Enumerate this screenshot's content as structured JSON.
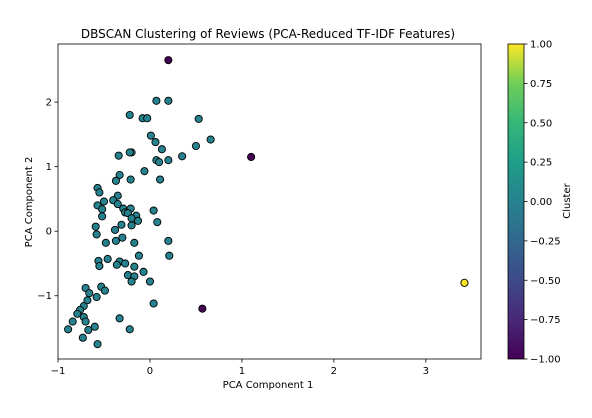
{
  "chart_data": {
    "type": "scatter",
    "title": "DBSCAN Clustering of Reviews (PCA-Reduced TF-IDF Features)",
    "xlabel": "PCA Component 1",
    "ylabel": "PCA Component 2",
    "xlim": [
      -1.0,
      3.6
    ],
    "ylim": [
      -1.98,
      2.9
    ],
    "x_ticks": [
      -1,
      0,
      1,
      2,
      3
    ],
    "x_tick_labels": [
      "−1",
      "0",
      "1",
      "2",
      "3"
    ],
    "y_ticks": [
      -1,
      0,
      1,
      2
    ],
    "y_tick_labels": [
      "−1",
      "0",
      "1",
      "2"
    ],
    "grid": false,
    "colorbar": {
      "label": "Cluster",
      "min": -1.0,
      "max": 1.0,
      "ticks": [
        -1.0,
        -0.75,
        -0.5,
        -0.25,
        0.0,
        0.25,
        0.5,
        0.75,
        1.0
      ],
      "tick_labels": [
        "−1.00",
        "−0.75",
        "−0.50",
        "−0.25",
        "0.00",
        "0.25",
        "0.50",
        "0.75",
        "1.00"
      ],
      "colormap": "viridis"
    },
    "points": [
      {
        "x": 0.2,
        "y": 2.65,
        "cluster": -1
      },
      {
        "x": 1.1,
        "y": 1.15,
        "cluster": -1
      },
      {
        "x": 0.57,
        "y": -1.2,
        "cluster": -1
      },
      {
        "x": 3.42,
        "y": -0.8,
        "cluster": 1
      },
      {
        "x": 0.07,
        "y": 2.02,
        "cluster": 0
      },
      {
        "x": 0.2,
        "y": 2.02,
        "cluster": 0
      },
      {
        "x": -0.22,
        "y": 1.8,
        "cluster": 0
      },
      {
        "x": -0.08,
        "y": 1.75,
        "cluster": 0
      },
      {
        "x": -0.03,
        "y": 1.75,
        "cluster": 0
      },
      {
        "x": 0.53,
        "y": 1.74,
        "cluster": 0
      },
      {
        "x": 0.01,
        "y": 1.48,
        "cluster": 0
      },
      {
        "x": 0.66,
        "y": 1.42,
        "cluster": 0
      },
      {
        "x": 0.06,
        "y": 1.38,
        "cluster": 0
      },
      {
        "x": 0.5,
        "y": 1.32,
        "cluster": 0
      },
      {
        "x": 0.13,
        "y": 1.27,
        "cluster": 0
      },
      {
        "x": -0.2,
        "y": 1.22,
        "cluster": 0
      },
      {
        "x": -0.22,
        "y": 1.22,
        "cluster": 0
      },
      {
        "x": -0.34,
        "y": 1.17,
        "cluster": 0
      },
      {
        "x": 0.35,
        "y": 1.16,
        "cluster": 0
      },
      {
        "x": 0.07,
        "y": 1.1,
        "cluster": 0
      },
      {
        "x": 0.1,
        "y": 1.07,
        "cluster": 0
      },
      {
        "x": 0.2,
        "y": 1.1,
        "cluster": 0
      },
      {
        "x": -0.06,
        "y": 0.93,
        "cluster": 0
      },
      {
        "x": -0.33,
        "y": 0.87,
        "cluster": 0
      },
      {
        "x": -0.21,
        "y": 0.8,
        "cluster": 0
      },
      {
        "x": -0.37,
        "y": 0.78,
        "cluster": 0
      },
      {
        "x": 0.11,
        "y": 0.8,
        "cluster": 0
      },
      {
        "x": -0.57,
        "y": 0.67,
        "cluster": 0
      },
      {
        "x": -0.55,
        "y": 0.6,
        "cluster": 0
      },
      {
        "x": -0.35,
        "y": 0.55,
        "cluster": 0
      },
      {
        "x": -0.4,
        "y": 0.48,
        "cluster": 0
      },
      {
        "x": -0.5,
        "y": 0.46,
        "cluster": 0
      },
      {
        "x": -0.35,
        "y": 0.42,
        "cluster": 0
      },
      {
        "x": -0.57,
        "y": 0.4,
        "cluster": 0
      },
      {
        "x": -0.29,
        "y": 0.35,
        "cluster": 0
      },
      {
        "x": -0.21,
        "y": 0.35,
        "cluster": 0
      },
      {
        "x": -0.52,
        "y": 0.34,
        "cluster": 0
      },
      {
        "x": 0.04,
        "y": 0.32,
        "cluster": 0
      },
      {
        "x": -0.27,
        "y": 0.29,
        "cluster": 0
      },
      {
        "x": -0.24,
        "y": 0.28,
        "cluster": 0
      },
      {
        "x": -0.15,
        "y": 0.24,
        "cluster": 0
      },
      {
        "x": -0.52,
        "y": 0.23,
        "cluster": 0
      },
      {
        "x": -0.2,
        "y": 0.2,
        "cluster": 0
      },
      {
        "x": -0.13,
        "y": 0.16,
        "cluster": 0
      },
      {
        "x": 0.08,
        "y": 0.14,
        "cluster": 0
      },
      {
        "x": -0.31,
        "y": 0.1,
        "cluster": 0
      },
      {
        "x": -0.2,
        "y": 0.09,
        "cluster": 0
      },
      {
        "x": -0.59,
        "y": 0.07,
        "cluster": 0
      },
      {
        "x": -0.38,
        "y": 0.02,
        "cluster": 0
      },
      {
        "x": -0.58,
        "y": -0.05,
        "cluster": 0
      },
      {
        "x": -0.3,
        "y": -0.1,
        "cluster": 0
      },
      {
        "x": -0.37,
        "y": -0.15,
        "cluster": 0
      },
      {
        "x": 0.2,
        "y": -0.15,
        "cluster": 0
      },
      {
        "x": -0.48,
        "y": -0.18,
        "cluster": 0
      },
      {
        "x": -0.17,
        "y": -0.18,
        "cluster": 0
      },
      {
        "x": 0.21,
        "y": -0.38,
        "cluster": 0
      },
      {
        "x": -0.12,
        "y": -0.38,
        "cluster": 0
      },
      {
        "x": -0.46,
        "y": -0.43,
        "cluster": 0
      },
      {
        "x": -0.56,
        "y": -0.46,
        "cluster": 0
      },
      {
        "x": -0.33,
        "y": -0.47,
        "cluster": 0
      },
      {
        "x": -0.27,
        "y": -0.5,
        "cluster": 0
      },
      {
        "x": -0.36,
        "y": -0.52,
        "cluster": 0
      },
      {
        "x": -0.55,
        "y": -0.54,
        "cluster": 0
      },
      {
        "x": -0.17,
        "y": -0.55,
        "cluster": 0
      },
      {
        "x": -0.07,
        "y": -0.63,
        "cluster": 0
      },
      {
        "x": -0.24,
        "y": -0.68,
        "cluster": 0
      },
      {
        "x": -0.17,
        "y": -0.7,
        "cluster": 0
      },
      {
        "x": -0.2,
        "y": -0.78,
        "cluster": 0
      },
      {
        "x": 0.0,
        "y": -0.78,
        "cluster": 0
      },
      {
        "x": -0.53,
        "y": -0.86,
        "cluster": 0
      },
      {
        "x": -0.7,
        "y": -0.88,
        "cluster": 0
      },
      {
        "x": -0.49,
        "y": -0.92,
        "cluster": 0
      },
      {
        "x": -0.66,
        "y": -0.96,
        "cluster": 0
      },
      {
        "x": -0.58,
        "y": -1.02,
        "cluster": 0
      },
      {
        "x": -0.68,
        "y": -1.07,
        "cluster": 0
      },
      {
        "x": 0.04,
        "y": -1.12,
        "cluster": 0
      },
      {
        "x": -0.72,
        "y": -1.16,
        "cluster": 0
      },
      {
        "x": -0.76,
        "y": -1.22,
        "cluster": 0
      },
      {
        "x": -0.79,
        "y": -1.28,
        "cluster": 0
      },
      {
        "x": -0.72,
        "y": -1.33,
        "cluster": 0
      },
      {
        "x": -0.33,
        "y": -1.35,
        "cluster": 0
      },
      {
        "x": -0.84,
        "y": -1.4,
        "cluster": 0
      },
      {
        "x": -0.7,
        "y": -1.4,
        "cluster": 0
      },
      {
        "x": -0.6,
        "y": -1.48,
        "cluster": 0
      },
      {
        "x": -0.67,
        "y": -1.53,
        "cluster": 0
      },
      {
        "x": -0.89,
        "y": -1.52,
        "cluster": 0
      },
      {
        "x": -0.22,
        "y": -1.52,
        "cluster": 0
      },
      {
        "x": -0.73,
        "y": -1.65,
        "cluster": 0
      },
      {
        "x": -0.57,
        "y": -1.75,
        "cluster": 0
      }
    ]
  }
}
